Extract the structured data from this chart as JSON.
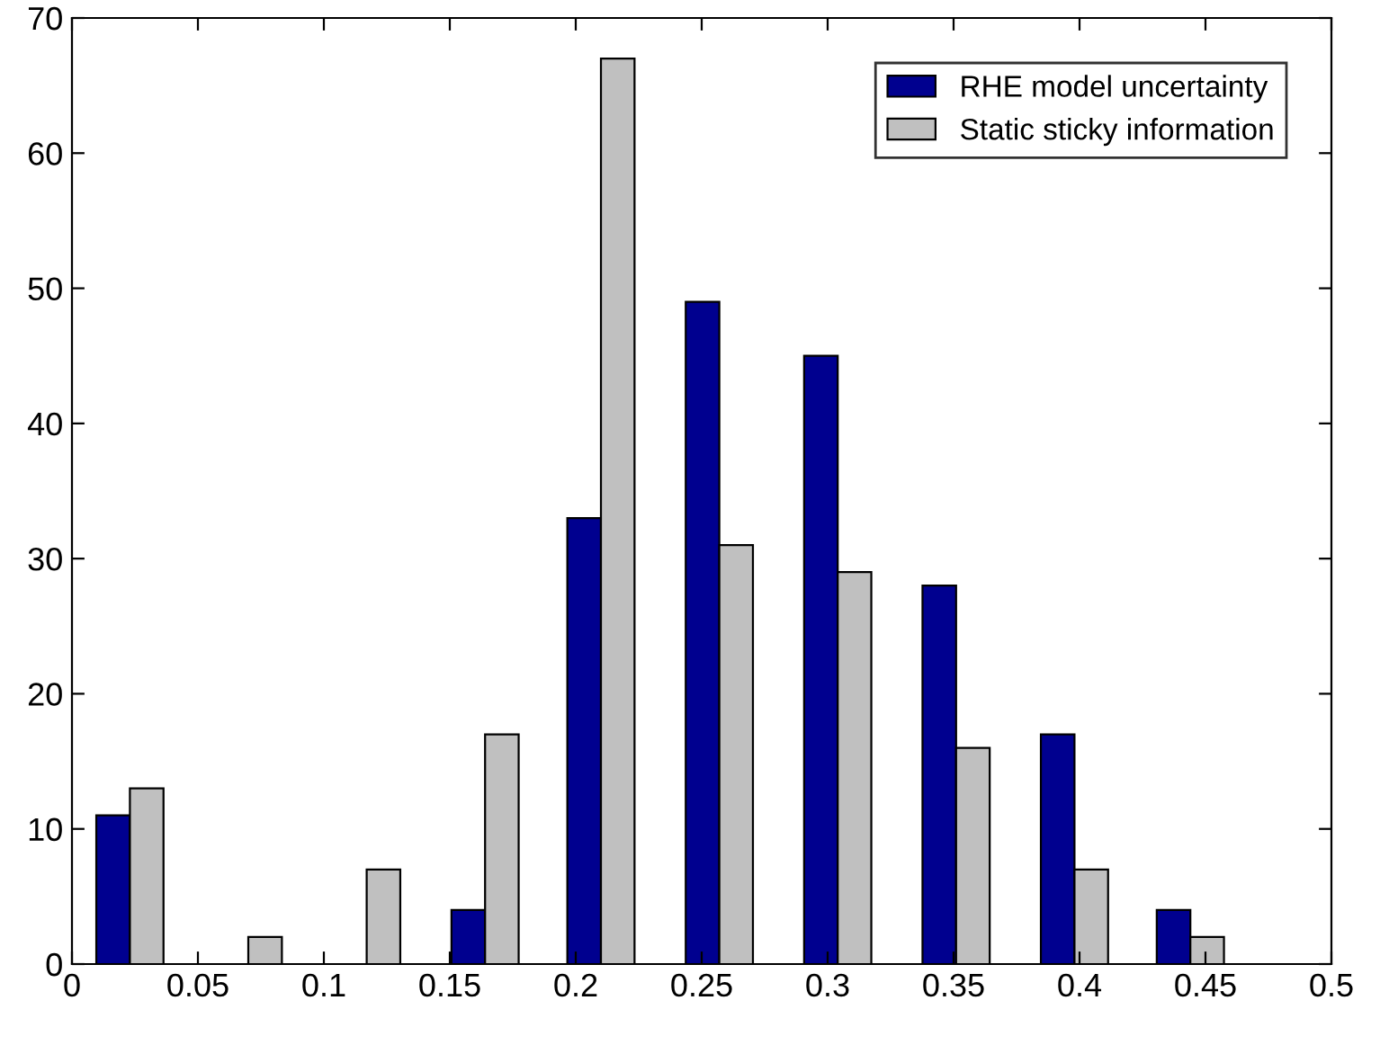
{
  "chart_data": {
    "type": "bar",
    "x": [
      0.023,
      0.07,
      0.117,
      0.164,
      0.21,
      0.257,
      0.304,
      0.351,
      0.398,
      0.444
    ],
    "series": [
      {
        "name": "RHE model uncertainty",
        "color": "#00008f",
        "values": [
          11,
          0,
          0,
          4,
          33,
          49,
          45,
          28,
          17,
          4
        ]
      },
      {
        "name": "Static sticky information",
        "color": "#c0c0c0",
        "values": [
          13,
          2,
          7,
          17,
          67,
          31,
          29,
          16,
          7,
          2
        ]
      }
    ],
    "xlim": [
      0,
      0.5
    ],
    "xticks": [
      0,
      0.05,
      0.1,
      0.15,
      0.2,
      0.25,
      0.3,
      0.35,
      0.4,
      0.45,
      0.5
    ],
    "ylim": [
      0,
      70
    ],
    "yticks": [
      0,
      10,
      20,
      30,
      40,
      50,
      60,
      70
    ],
    "grid": false,
    "legend": "top right"
  }
}
